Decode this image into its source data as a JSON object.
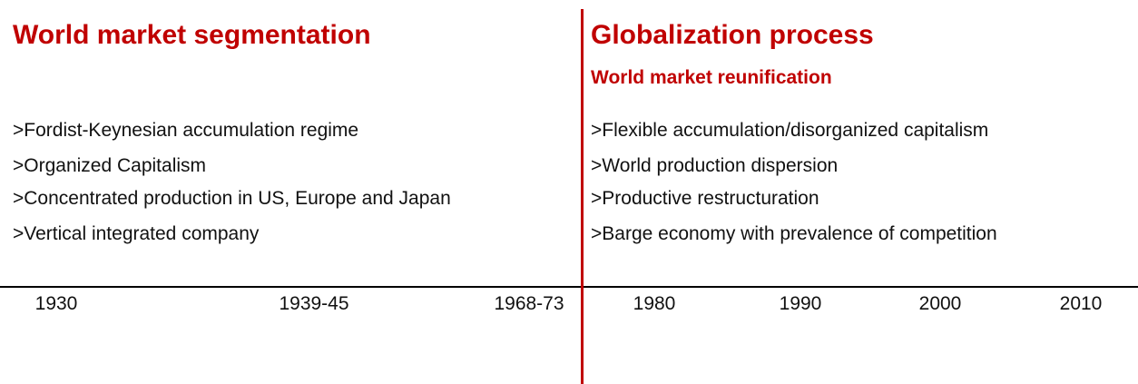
{
  "left": {
    "title": "World market segmentation",
    "items": [
      ">Fordist-Keynesian accumulation regime",
      ">Organized Capitalism",
      ">Concentrated production in US, Europe and Japan",
      ">Vertical integrated company"
    ]
  },
  "right": {
    "title": "Globalization process",
    "subtitle": "World market reunification",
    "items": [
      ">Flexible accumulation/disorganized capitalism",
      ">World production dispersion",
      ">Productive restructuration",
      ">Barge economy with prevalence of competition"
    ]
  },
  "timeline": [
    "1930",
    "1939-45",
    "1968-73",
    "1980",
    "1990",
    "2000",
    "2010"
  ]
}
